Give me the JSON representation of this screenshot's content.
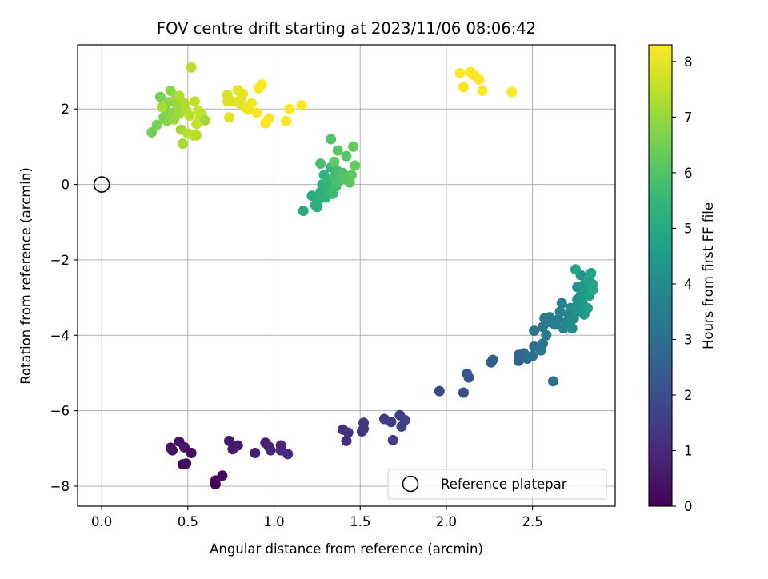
{
  "chart_data": {
    "type": "scatter",
    "title": "FOV centre drift starting at 2023/11/06 08:06:42",
    "xlabel": "Angular distance from reference (arcmin)",
    "ylabel": "Rotation from reference (arcmin)",
    "xlim": [
      -0.14,
      2.98
    ],
    "ylim": [
      -8.53,
      3.7
    ],
    "xticks": [
      "0.0",
      "0.5",
      "1.0",
      "1.5",
      "2.0",
      "2.5"
    ],
    "xtick_values": [
      0.0,
      0.5,
      1.0,
      1.5,
      2.0,
      2.5
    ],
    "yticks": [
      "−8",
      "−6",
      "−4",
      "−2",
      "0",
      "2"
    ],
    "ytick_values": [
      -8,
      -6,
      -4,
      -2,
      0,
      2
    ],
    "grid": true,
    "colormap": "viridis",
    "colormap_stops": [
      "#440154",
      "#482878",
      "#3e4989",
      "#31688e",
      "#26828e",
      "#1f9e89",
      "#35b779",
      "#6ece58",
      "#b5de2b",
      "#fde725"
    ],
    "colorbar": {
      "label": "Hours from first FF file",
      "range": [
        0,
        8.3
      ],
      "ticks": [
        "0",
        "1",
        "2",
        "3",
        "4",
        "5",
        "6",
        "7",
        "8"
      ],
      "tick_values": [
        0,
        1,
        2,
        3,
        4,
        5,
        6,
        7,
        8
      ]
    },
    "reference": {
      "x": 0.0,
      "y": 0.0,
      "name": "Reference platepar"
    },
    "legend": {
      "placement": "lower right",
      "entries": [
        "Reference platepar"
      ]
    },
    "point_fields": [
      "x",
      "y",
      "hours"
    ],
    "points": [
      [
        0.66,
        -7.95,
        0.05
      ],
      [
        0.66,
        -7.85,
        0.1
      ],
      [
        0.7,
        -7.72,
        0.15
      ],
      [
        0.47,
        -7.42,
        0.2
      ],
      [
        0.49,
        -7.4,
        0.25
      ],
      [
        0.52,
        -7.12,
        0.3
      ],
      [
        0.41,
        -7.05,
        0.35
      ],
      [
        0.4,
        -6.98,
        0.4
      ],
      [
        0.45,
        -6.82,
        0.45
      ],
      [
        0.48,
        -6.97,
        0.5
      ],
      [
        0.74,
        -6.8,
        0.55
      ],
      [
        0.76,
        -7.02,
        0.6
      ],
      [
        0.79,
        -6.92,
        0.65
      ],
      [
        0.89,
        -7.12,
        0.7
      ],
      [
        0.95,
        -6.85,
        0.75
      ],
      [
        0.97,
        -6.95,
        0.8
      ],
      [
        0.98,
        -7.05,
        0.85
      ],
      [
        1.04,
        -6.92,
        0.9
      ],
      [
        1.04,
        -7.05,
        0.95
      ],
      [
        1.08,
        -7.15,
        1.0
      ],
      [
        1.4,
        -6.5,
        1.1
      ],
      [
        1.42,
        -6.8,
        1.15
      ],
      [
        1.43,
        -6.58,
        1.2
      ],
      [
        1.51,
        -6.55,
        1.25
      ],
      [
        1.52,
        -6.32,
        1.3
      ],
      [
        1.52,
        -6.48,
        1.35
      ],
      [
        1.64,
        -6.22,
        1.4
      ],
      [
        1.68,
        -6.3,
        1.45
      ],
      [
        1.69,
        -6.78,
        1.5
      ],
      [
        1.73,
        -6.12,
        1.55
      ],
      [
        1.74,
        -6.42,
        1.6
      ],
      [
        1.76,
        -6.25,
        1.65
      ],
      [
        1.96,
        -5.48,
        1.9
      ],
      [
        2.1,
        -5.52,
        2.0
      ],
      [
        2.12,
        -5.02,
        2.1
      ],
      [
        2.13,
        -5.12,
        2.2
      ],
      [
        2.26,
        -4.72,
        2.4
      ],
      [
        2.27,
        -4.65,
        2.5
      ],
      [
        2.42,
        -4.68,
        2.6
      ],
      [
        2.42,
        -4.52,
        2.7
      ],
      [
        2.45,
        -4.48,
        2.8
      ],
      [
        2.47,
        -4.62,
        2.9
      ],
      [
        2.5,
        -4.55,
        3.0
      ],
      [
        2.51,
        -4.3,
        3.1
      ],
      [
        2.51,
        -3.88,
        3.15
      ],
      [
        2.55,
        -4.4,
        3.2
      ],
      [
        2.56,
        -4.22,
        3.25
      ],
      [
        2.56,
        -3.78,
        3.3
      ],
      [
        2.57,
        -3.55,
        3.35
      ],
      [
        2.58,
        -4.0,
        3.4
      ],
      [
        2.59,
        -3.65,
        3.45
      ],
      [
        2.6,
        -3.52,
        3.5
      ],
      [
        2.62,
        -5.22,
        3.0
      ],
      [
        2.63,
        -3.72,
        3.55
      ],
      [
        2.65,
        -3.58,
        3.6
      ],
      [
        2.66,
        -3.38,
        3.65
      ],
      [
        2.67,
        -3.15,
        3.7
      ],
      [
        2.68,
        -3.82,
        3.75
      ],
      [
        2.7,
        -3.65,
        3.8
      ],
      [
        2.71,
        -3.45,
        3.85
      ],
      [
        2.72,
        -3.72,
        3.9
      ],
      [
        2.72,
        -3.28,
        3.95
      ],
      [
        2.73,
        -3.82,
        4.0
      ],
      [
        2.74,
        -3.55,
        4.05
      ],
      [
        2.75,
        -3.25,
        4.1
      ],
      [
        2.76,
        -3.05,
        4.15
      ],
      [
        2.76,
        -2.72,
        4.2
      ],
      [
        2.77,
        -3.35,
        4.25
      ],
      [
        2.78,
        -2.4,
        4.3
      ],
      [
        2.78,
        -2.95,
        4.35
      ],
      [
        2.79,
        -3.15,
        4.4
      ],
      [
        2.8,
        -2.65,
        4.45
      ],
      [
        2.8,
        -3.45,
        4.5
      ],
      [
        2.81,
        -2.75,
        4.55
      ],
      [
        2.82,
        -3.28,
        4.6
      ],
      [
        2.83,
        -2.95,
        4.65
      ],
      [
        2.83,
        -2.55,
        4.7
      ],
      [
        2.84,
        -2.35,
        4.75
      ],
      [
        2.75,
        -2.25,
        4.8
      ],
      [
        2.85,
        -2.65,
        4.85
      ],
      [
        2.85,
        -2.8,
        4.9
      ],
      [
        1.17,
        -0.7,
        5.0
      ],
      [
        1.22,
        -0.3,
        5.1
      ],
      [
        1.24,
        -0.55,
        5.15
      ],
      [
        1.25,
        -0.6,
        5.2
      ],
      [
        1.26,
        -0.4,
        5.25
      ],
      [
        1.27,
        -0.2,
        5.3
      ],
      [
        1.28,
        0.0,
        5.35
      ],
      [
        1.29,
        0.25,
        5.4
      ],
      [
        1.3,
        -0.35,
        5.45
      ],
      [
        1.31,
        0.1,
        5.5
      ],
      [
        1.32,
        -0.1,
        5.55
      ],
      [
        1.33,
        0.45,
        5.6
      ],
      [
        1.34,
        -0.25,
        5.65
      ],
      [
        1.35,
        0.2,
        5.7
      ],
      [
        1.36,
        -0.05,
        5.75
      ],
      [
        1.37,
        0.35,
        5.8
      ],
      [
        1.27,
        0.55,
        5.85
      ],
      [
        1.38,
        0.1,
        5.9
      ],
      [
        1.4,
        0.3,
        5.95
      ],
      [
        1.41,
        0.15,
        6.0
      ],
      [
        1.42,
        0.75,
        6.05
      ],
      [
        1.43,
        0.2,
        6.1
      ],
      [
        1.44,
        0.05,
        6.15
      ],
      [
        1.45,
        0.25,
        6.2
      ],
      [
        1.46,
        1.0,
        6.25
      ],
      [
        1.47,
        0.5,
        6.3
      ],
      [
        1.33,
        1.2,
        6.0
      ],
      [
        1.37,
        0.9,
        6.1
      ],
      [
        1.35,
        0.6,
        6.2
      ],
      [
        0.29,
        1.38,
        6.5
      ],
      [
        0.32,
        1.58,
        6.55
      ],
      [
        0.34,
        2.32,
        6.6
      ],
      [
        0.36,
        1.78,
        6.65
      ],
      [
        0.37,
        2.0,
        6.7
      ],
      [
        0.38,
        1.68,
        6.75
      ],
      [
        0.39,
        2.18,
        6.8
      ],
      [
        0.4,
        2.48,
        6.85
      ],
      [
        0.41,
        1.9,
        6.9
      ],
      [
        0.42,
        1.72,
        6.95
      ],
      [
        0.43,
        2.28,
        7.0
      ],
      [
        0.44,
        2.05,
        7.05
      ],
      [
        0.45,
        1.88,
        7.1
      ],
      [
        0.46,
        1.45,
        7.15
      ],
      [
        0.47,
        1.08,
        7.2
      ],
      [
        0.48,
        2.15,
        7.25
      ],
      [
        0.49,
        1.95,
        7.3
      ],
      [
        0.5,
        1.35,
        7.35
      ],
      [
        0.51,
        1.82,
        7.4
      ],
      [
        0.52,
        3.1,
        7.45
      ],
      [
        0.53,
        1.3,
        7.5
      ],
      [
        0.54,
        2.2,
        7.55
      ],
      [
        0.55,
        1.6,
        7.6
      ],
      [
        0.56,
        1.95,
        7.65
      ],
      [
        0.57,
        1.75,
        7.7
      ],
      [
        0.58,
        1.85,
        7.5
      ],
      [
        0.55,
        1.3,
        7.4
      ],
      [
        0.45,
        2.35,
        7.3
      ],
      [
        0.35,
        2.05,
        7.2
      ],
      [
        0.6,
        1.7,
        7.1
      ],
      [
        0.73,
        2.38,
        7.8
      ],
      [
        0.74,
        1.78,
        7.85
      ],
      [
        0.76,
        2.2,
        7.9
      ],
      [
        0.79,
        2.5,
        7.95
      ],
      [
        0.81,
        2.3,
        8.0
      ],
      [
        0.83,
        2.05,
        8.05
      ],
      [
        0.85,
        1.98,
        8.1
      ],
      [
        0.87,
        2.15,
        8.15
      ],
      [
        0.9,
        1.9,
        8.2
      ],
      [
        0.91,
        2.55,
        8.25
      ],
      [
        0.93,
        2.65,
        8.3
      ],
      [
        0.95,
        1.62,
        8.35
      ],
      [
        0.97,
        1.75,
        8.4
      ],
      [
        1.07,
        1.68,
        8.45
      ],
      [
        1.09,
        2.0,
        8.5
      ],
      [
        1.16,
        2.1,
        8.55
      ],
      [
        0.73,
        2.2,
        7.9
      ],
      [
        0.8,
        2.15,
        7.95
      ],
      [
        0.82,
        2.4,
        8.0
      ],
      [
        2.08,
        2.95,
        8.9
      ],
      [
        2.1,
        2.58,
        8.95
      ],
      [
        2.14,
        2.98,
        9.0
      ],
      [
        2.16,
        2.9,
        9.05
      ],
      [
        2.19,
        2.78,
        9.1
      ],
      [
        2.21,
        2.48,
        9.15
      ],
      [
        2.38,
        2.45,
        9.2
      ]
    ]
  }
}
